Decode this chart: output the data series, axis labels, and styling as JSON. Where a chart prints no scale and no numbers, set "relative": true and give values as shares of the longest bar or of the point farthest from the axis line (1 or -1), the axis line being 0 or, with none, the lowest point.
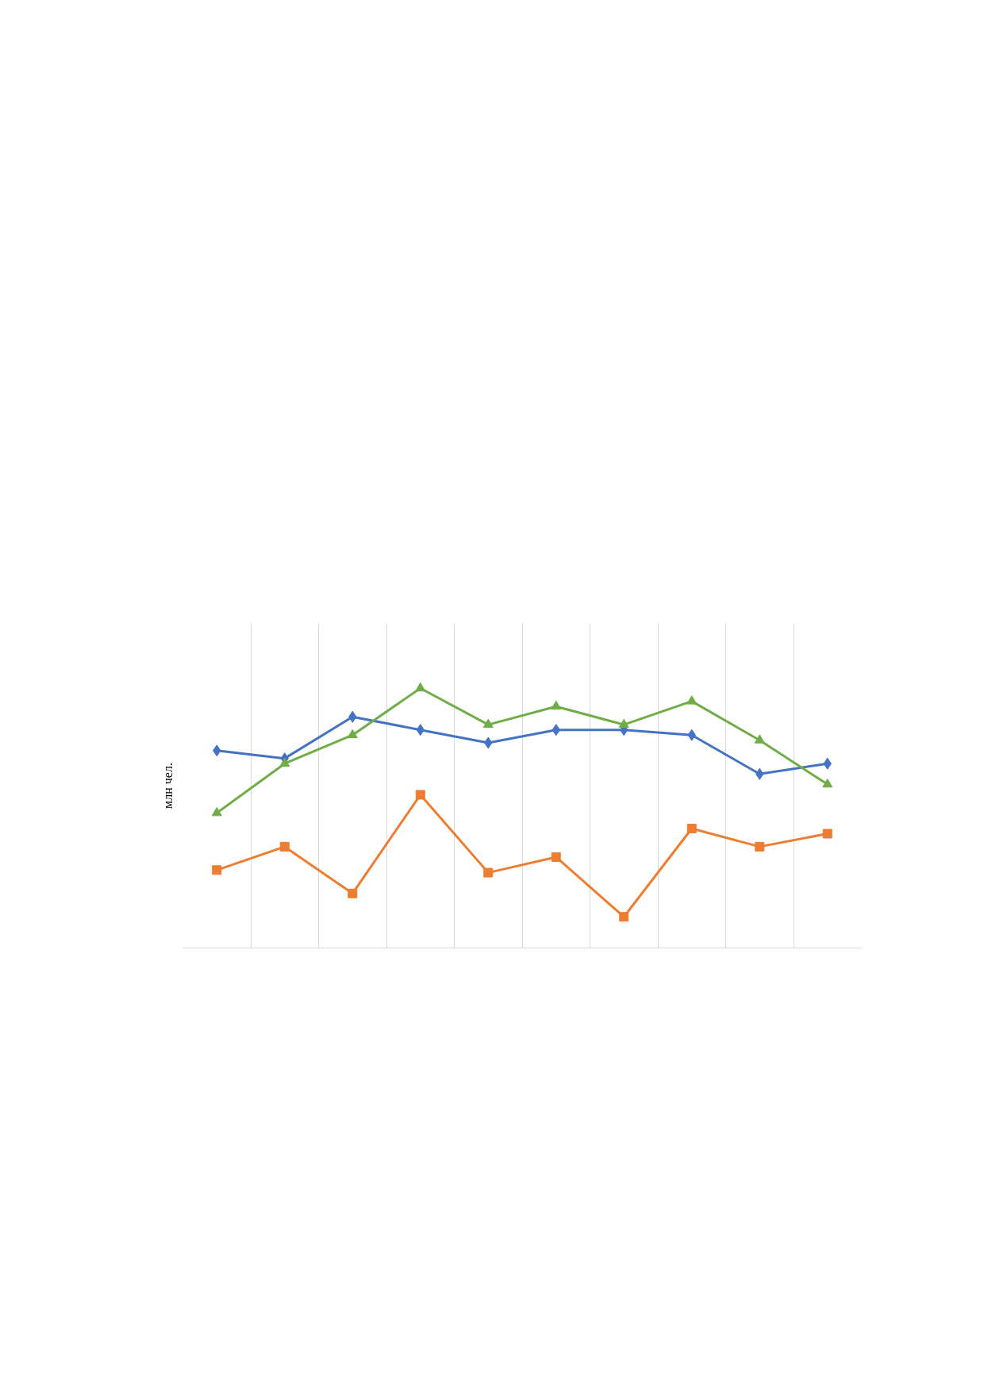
{
  "chart_data": {
    "type": "line",
    "ylabel": "млн чел.",
    "relative": true,
    "grid": "x",
    "categories": [
      null,
      null,
      null,
      null,
      null,
      null,
      null,
      null,
      null,
      null
    ],
    "series": [
      {
        "color": "#4472c4",
        "marker": "diamond",
        "values": [
          0.76,
          0.73,
          0.89,
          0.84,
          0.79,
          0.84,
          0.84,
          0.82,
          0.67,
          0.71
        ]
      },
      {
        "color": "#ed7d31",
        "marker": "square",
        "values": [
          0.3,
          0.39,
          0.21,
          0.59,
          0.29,
          0.35,
          0.12,
          0.46,
          0.39,
          0.44
        ]
      },
      {
        "color": "#70ad47",
        "marker": "triangle",
        "values": [
          0.52,
          0.71,
          0.82,
          1.0,
          0.86,
          0.93,
          0.86,
          0.95,
          0.8,
          0.63
        ]
      }
    ]
  }
}
